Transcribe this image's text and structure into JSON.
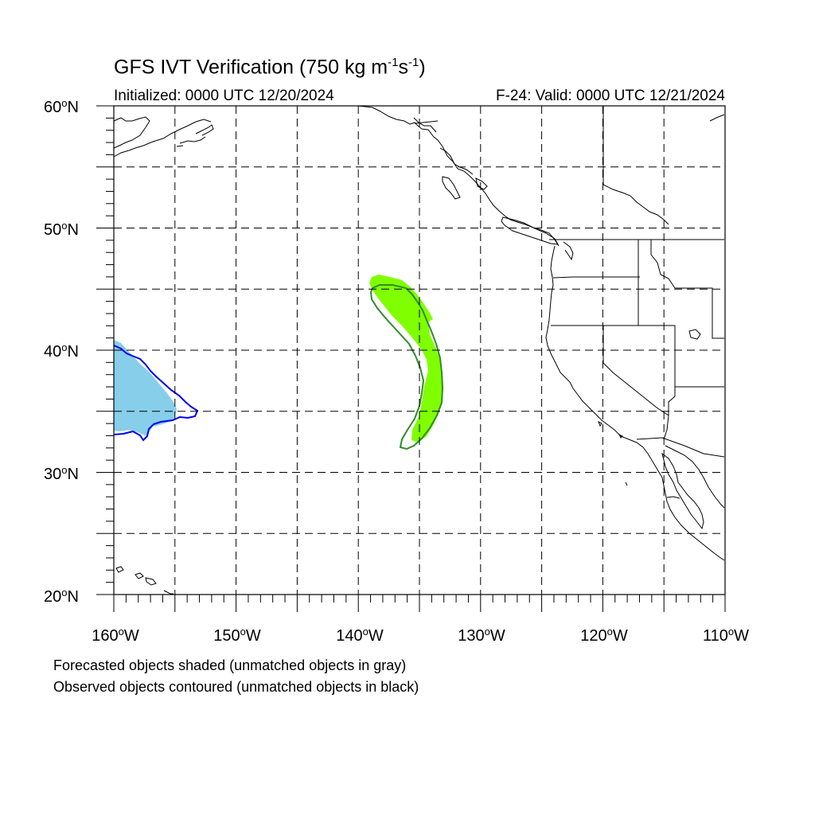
{
  "title": {
    "main": "GFS IVT Verification (750 kg m",
    "sup1": "-1",
    "mid": "s",
    "sup2": "-1",
    "end": ")"
  },
  "initialized": "Initialized: 0000 UTC 12/20/2024",
  "valid": "F-24: Valid: 0000 UTC 12/21/2024",
  "lat_labels": [
    {
      "num": "60",
      "deg": "o",
      "hem": "N"
    },
    {
      "num": "50",
      "deg": "o",
      "hem": "N"
    },
    {
      "num": "40",
      "deg": "o",
      "hem": "N"
    },
    {
      "num": "30",
      "deg": "o",
      "hem": "N"
    },
    {
      "num": "20",
      "deg": "o",
      "hem": "N"
    }
  ],
  "lon_labels": [
    {
      "num": "160",
      "deg": "o",
      "hem": "W"
    },
    {
      "num": "150",
      "deg": "o",
      "hem": "W"
    },
    {
      "num": "140",
      "deg": "o",
      "hem": "W"
    },
    {
      "num": "130",
      "deg": "o",
      "hem": "W"
    },
    {
      "num": "120",
      "deg": "o",
      "hem": "W"
    },
    {
      "num": "110",
      "deg": "o",
      "hem": "W"
    }
  ],
  "captions": [
    "Forecasted objects shaded (unmatched objects in gray)",
    "Observed objects contoured (unmatched objects in black)"
  ],
  "map": {
    "extent": {
      "lon": [
        -160,
        -110
      ],
      "lat": [
        20,
        60
      ]
    },
    "grid_interval_deg": 5,
    "objects": [
      {
        "name": "object-1",
        "forecast_fill": "#87ceeb",
        "observed_contour": "#0000ee"
      },
      {
        "name": "object-2",
        "forecast_fill": "#7fff00",
        "observed_contour": "#2e8b2e"
      }
    ]
  }
}
